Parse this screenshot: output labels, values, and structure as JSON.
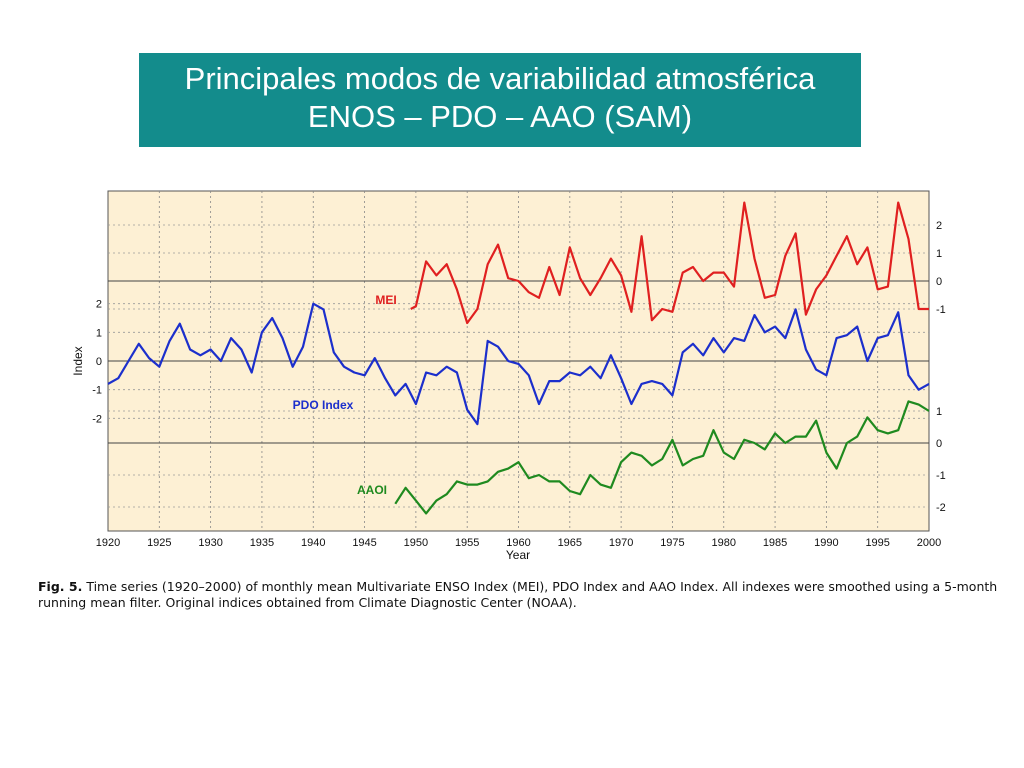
{
  "slide": {
    "title_line1": "Principales modos de variabilidad atmosférica",
    "title_line2": "ENOS – PDO – AAO (SAM)",
    "caption_label": "Fig. 5.",
    "caption_text": "Time series (1920–2000) of monthly mean Multivariate ENSO Index (MEI), PDO Index and AAO Index. All indexes were smoothed using a 5-month running mean filter. Original indices obtained from Climate Diagnostic Center (NOAA)."
  },
  "colors": {
    "background": "#ffffff",
    "title_bg": "#138c8c",
    "plot_bg": "#fdf0d4",
    "mei": "#e02020",
    "pdo": "#1c2fcc",
    "aao": "#1f8a1f"
  },
  "chart_data": {
    "type": "line",
    "xlabel": "Year",
    "ylabel": "Index",
    "xlim": [
      1920,
      2000
    ],
    "x_ticks": [
      "1920",
      "1925",
      "1930",
      "1935",
      "1940",
      "1945",
      "1950",
      "1955",
      "1960",
      "1965",
      "1970",
      "1975",
      "1980",
      "1985",
      "1990",
      "1995",
      "2000"
    ],
    "grid": "dashed vertical at 5-year intervals",
    "series": [
      {
        "name": "MEI",
        "axis": "right-top",
        "ylim": [
          -1.5,
          3
        ],
        "y_ticks": [
          "2",
          "1",
          "0",
          "-1"
        ],
        "x": [
          1949.5,
          1950,
          1951,
          1952,
          1953,
          1954,
          1955,
          1956,
          1957,
          1958,
          1959,
          1960,
          1961,
          1962,
          1963,
          1964,
          1965,
          1966,
          1967,
          1968,
          1969,
          1970,
          1971,
          1972,
          1973,
          1974,
          1975,
          1976,
          1977,
          1978,
          1979,
          1980,
          1981,
          1982,
          1983,
          1984,
          1985,
          1986,
          1987,
          1988,
          1989,
          1990,
          1991,
          1992,
          1993,
          1994,
          1995,
          1996,
          1997,
          1998,
          1999,
          2000
        ],
        "y": [
          -1.0,
          -0.9,
          0.7,
          0.2,
          0.6,
          -0.3,
          -1.5,
          -1.0,
          0.6,
          1.3,
          0.1,
          0.0,
          -0.4,
          -0.6,
          0.5,
          -0.5,
          1.2,
          0.1,
          -0.5,
          0.1,
          0.8,
          0.2,
          -1.1,
          1.6,
          -1.4,
          -1.0,
          -1.1,
          0.3,
          0.5,
          0.0,
          0.3,
          0.3,
          -0.2,
          2.8,
          0.8,
          -0.6,
          -0.5,
          0.9,
          1.7,
          -1.2,
          -0.3,
          0.2,
          0.9,
          1.6,
          0.6,
          1.2,
          -0.3,
          -0.2,
          2.8,
          1.5,
          -1.0,
          -1.0
        ]
      },
      {
        "name": "PDO Index",
        "axis": "left",
        "ylim": [
          -3,
          3
        ],
        "y_ticks": [
          "2",
          "1",
          "0",
          "-1",
          "-2"
        ],
        "x": [
          1920,
          1921,
          1922,
          1923,
          1924,
          1925,
          1926,
          1927,
          1928,
          1929,
          1930,
          1931,
          1932,
          1933,
          1934,
          1935,
          1936,
          1937,
          1938,
          1939,
          1940,
          1941,
          1942,
          1943,
          1944,
          1945,
          1946,
          1947,
          1948,
          1949,
          1950,
          1951,
          1952,
          1953,
          1954,
          1955,
          1956,
          1957,
          1958,
          1959,
          1960,
          1961,
          1962,
          1963,
          1964,
          1965,
          1966,
          1967,
          1968,
          1969,
          1970,
          1971,
          1972,
          1973,
          1974,
          1975,
          1976,
          1977,
          1978,
          1979,
          1980,
          1981,
          1982,
          1983,
          1984,
          1985,
          1986,
          1987,
          1988,
          1989,
          1990,
          1991,
          1992,
          1993,
          1994,
          1995,
          1996,
          1997,
          1998,
          1999,
          2000
        ],
        "y": [
          -0.8,
          -0.6,
          0.0,
          0.6,
          0.1,
          -0.2,
          0.7,
          1.3,
          0.4,
          0.2,
          0.4,
          0.0,
          0.8,
          0.4,
          -0.4,
          1.0,
          1.5,
          0.8,
          -0.2,
          0.5,
          2.0,
          1.8,
          0.3,
          -0.2,
          -0.4,
          -0.5,
          0.1,
          -0.6,
          -1.2,
          -0.8,
          -1.5,
          -0.4,
          -0.5,
          -0.2,
          -0.4,
          -1.7,
          -2.2,
          0.7,
          0.5,
          0.0,
          -0.1,
          -0.5,
          -1.5,
          -0.7,
          -0.7,
          -0.4,
          -0.5,
          -0.2,
          -0.6,
          0.2,
          -0.6,
          -1.5,
          -0.8,
          -0.7,
          -0.8,
          -1.2,
          0.3,
          0.6,
          0.2,
          0.8,
          0.3,
          0.8,
          0.7,
          1.6,
          1.0,
          1.2,
          0.8,
          1.8,
          0.4,
          -0.3,
          -0.5,
          0.8,
          0.9,
          1.2,
          0.0,
          0.8,
          0.9,
          1.7,
          -0.5,
          -1.0,
          -0.8
        ]
      },
      {
        "name": "AAOI",
        "axis": "right-bottom",
        "ylim": [
          -2.5,
          1.5
        ],
        "y_ticks": [
          "1",
          "0",
          "-1",
          "-2"
        ],
        "x": [
          1948,
          1949,
          1950,
          1951,
          1952,
          1953,
          1954,
          1955,
          1956,
          1957,
          1958,
          1959,
          1960,
          1961,
          1962,
          1963,
          1964,
          1965,
          1966,
          1967,
          1968,
          1969,
          1970,
          1971,
          1972,
          1973,
          1974,
          1975,
          1976,
          1977,
          1978,
          1979,
          1980,
          1981,
          1982,
          1983,
          1984,
          1985,
          1986,
          1987,
          1988,
          1989,
          1990,
          1991,
          1992,
          1993,
          1994,
          1995,
          1996,
          1997,
          1998,
          1999,
          2000
        ],
        "y": [
          -1.9,
          -1.4,
          -1.8,
          -2.2,
          -1.8,
          -1.6,
          -1.2,
          -1.3,
          -1.3,
          -1.2,
          -0.9,
          -0.8,
          -0.6,
          -1.1,
          -1.0,
          -1.2,
          -1.2,
          -1.5,
          -1.6,
          -1.0,
          -1.3,
          -1.4,
          -0.6,
          -0.3,
          -0.4,
          -0.7,
          -0.5,
          0.1,
          -0.7,
          -0.5,
          -0.4,
          0.4,
          -0.3,
          -0.5,
          0.1,
          0.0,
          -0.2,
          0.3,
          0.0,
          0.2,
          0.2,
          0.7,
          -0.3,
          -0.8,
          0.0,
          0.2,
          0.8,
          0.4,
          0.3,
          0.4,
          1.3,
          1.2,
          1.0
        ]
      }
    ]
  }
}
